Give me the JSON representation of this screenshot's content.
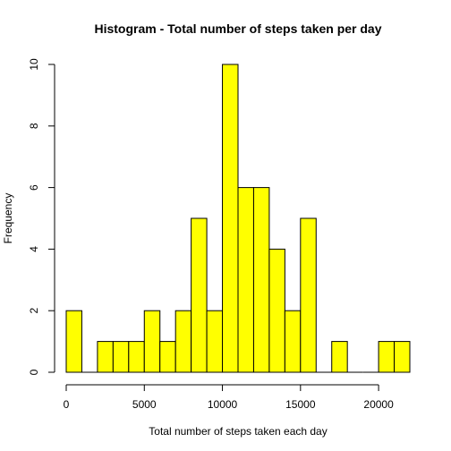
{
  "chart_data": {
    "type": "bar",
    "title": "Histogram - Total number of steps taken per day",
    "xlabel": "Total number of steps taken each day",
    "ylabel": "Frequency",
    "bin_width": 1000,
    "bins": [
      {
        "x0": 0,
        "x1": 1000,
        "count": 2
      },
      {
        "x0": 1000,
        "x1": 2000,
        "count": 0
      },
      {
        "x0": 2000,
        "x1": 3000,
        "count": 1
      },
      {
        "x0": 3000,
        "x1": 4000,
        "count": 1
      },
      {
        "x0": 4000,
        "x1": 5000,
        "count": 1
      },
      {
        "x0": 5000,
        "x1": 6000,
        "count": 2
      },
      {
        "x0": 6000,
        "x1": 7000,
        "count": 1
      },
      {
        "x0": 7000,
        "x1": 8000,
        "count": 2
      },
      {
        "x0": 8000,
        "x1": 9000,
        "count": 5
      },
      {
        "x0": 9000,
        "x1": 10000,
        "count": 2
      },
      {
        "x0": 10000,
        "x1": 11000,
        "count": 10
      },
      {
        "x0": 11000,
        "x1": 12000,
        "count": 6
      },
      {
        "x0": 12000,
        "x1": 13000,
        "count": 6
      },
      {
        "x0": 13000,
        "x1": 14000,
        "count": 4
      },
      {
        "x0": 14000,
        "x1": 15000,
        "count": 2
      },
      {
        "x0": 15000,
        "x1": 16000,
        "count": 5
      },
      {
        "x0": 16000,
        "x1": 17000,
        "count": 0
      },
      {
        "x0": 17000,
        "x1": 18000,
        "count": 1
      },
      {
        "x0": 18000,
        "x1": 19000,
        "count": 0
      },
      {
        "x0": 19000,
        "x1": 20000,
        "count": 0
      },
      {
        "x0": 20000,
        "x1": 21000,
        "count": 1
      },
      {
        "x0": 21000,
        "x1": 22000,
        "count": 1
      }
    ],
    "xlim": [
      0,
      22000
    ],
    "ylim": [
      0,
      10
    ],
    "x_ticks": [
      0,
      5000,
      10000,
      15000,
      20000
    ],
    "x_tick_labels": [
      "0",
      "5000",
      "10000",
      "15000",
      "20000"
    ],
    "y_ticks": [
      0,
      2,
      4,
      6,
      8,
      10
    ],
    "y_tick_labels": [
      "0",
      "2",
      "4",
      "6",
      "8",
      "10"
    ],
    "grid": false,
    "legend": "none",
    "colors": {
      "bar_fill": "#ffff00",
      "bar_stroke": "#000000"
    }
  }
}
